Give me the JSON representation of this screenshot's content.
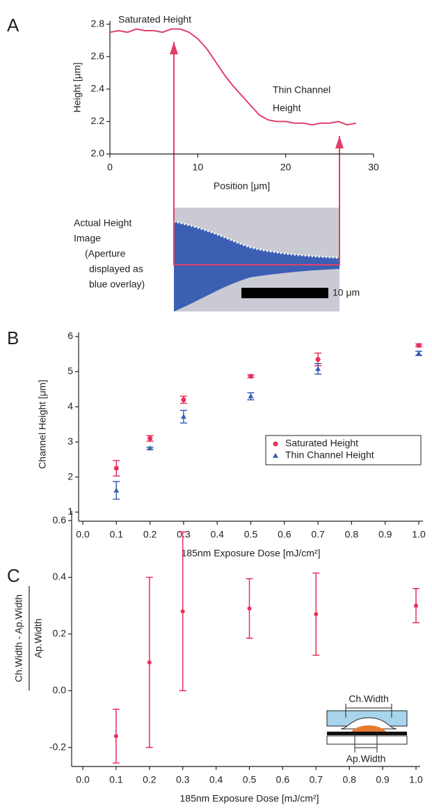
{
  "panel_labels": [
    "A",
    "B",
    "C"
  ],
  "chart_data": [
    {
      "type": "line",
      "xlabel": "Position [μm]",
      "ylabel": "Height [μm]",
      "color": "#e0406a",
      "x": [
        0,
        1,
        2,
        3,
        4,
        5,
        6,
        7,
        8,
        9,
        10,
        11,
        12,
        13,
        14,
        15,
        16,
        17,
        18,
        19,
        20,
        21,
        22,
        23,
        24,
        25,
        26,
        27,
        28
      ],
      "values": [
        2.75,
        2.76,
        2.75,
        2.77,
        2.76,
        2.76,
        2.75,
        2.77,
        2.77,
        2.75,
        2.71,
        2.65,
        2.57,
        2.49,
        2.42,
        2.36,
        2.3,
        2.24,
        2.21,
        2.2,
        2.2,
        2.19,
        2.19,
        2.18,
        2.19,
        2.19,
        2.2,
        2.18,
        2.19
      ],
      "xlim": [
        0,
        30
      ],
      "xticks": [
        0,
        10,
        20,
        30
      ],
      "ylim": [
        2.0,
        2.82
      ],
      "yticks": [
        {
          "value": 2.0,
          "label": "2.0"
        },
        2.2,
        2.4,
        2.6,
        2.8
      ],
      "annotations": [
        [
          "Saturated Height"
        ],
        [
          "Thin Channel",
          "Height"
        ]
      ],
      "image_caption": [
        "Actual Height",
        "Image",
        "(Aperture",
        "displayed as",
        "blue overlay)"
      ],
      "scale_bar_label": "10 μm"
    },
    {
      "type": "scatter",
      "xlabel": "185nm Exposure Dose [mJ/cm²]",
      "ylabel": "Channel Height [μm]",
      "x": [
        0.1,
        0.2,
        0.3,
        0.5,
        0.7,
        1.0
      ],
      "series": [
        {
          "name": "Saturated Height",
          "color": "#e8305a",
          "marker": "circle",
          "values": [
            2.25,
            3.1,
            4.2,
            4.87,
            5.35,
            5.75
          ],
          "errors": [
            0.22,
            0.08,
            0.1,
            0.04,
            0.18,
            0.04
          ]
        },
        {
          "name": "Thin Channel Height",
          "color": "#3a5fb0",
          "marker": "triangle",
          "values": [
            1.62,
            2.82,
            3.72,
            4.3,
            5.08,
            5.52
          ],
          "errors": [
            0.25,
            0.03,
            0.18,
            0.1,
            0.15,
            0.06
          ]
        }
      ],
      "xlim": [
        0,
        1
      ],
      "xticks": [
        {
          "value": 0,
          "label": "0.0"
        },
        0.1,
        0.2,
        0.3,
        0.4,
        0.5,
        0.6,
        0.7,
        0.8,
        0.9,
        {
          "value": 1,
          "label": "1.0"
        }
      ],
      "ylim": [
        1,
        6
      ],
      "yticks": [
        1,
        2,
        3,
        4,
        5,
        6
      ],
      "legend": "right"
    },
    {
      "type": "scatter",
      "xlabel": "185nm Exposure Dose [mJ/cm²]",
      "ylabel": [
        "Ch.Width - Ap.Width",
        "Ap.Width"
      ],
      "x": [
        0.1,
        0.2,
        0.3,
        0.5,
        0.7,
        1.0
      ],
      "series": [
        {
          "color": "#e8305a",
          "marker": "circle",
          "values": [
            -0.16,
            0.1,
            0.28,
            0.29,
            0.27,
            0.3
          ],
          "errors": [
            0.095,
            0.3,
            0.28,
            0.105,
            0.145,
            0.06
          ]
        }
      ],
      "xlim": [
        0,
        1
      ],
      "xticks": [
        {
          "value": 0,
          "label": "0.0"
        },
        0.1,
        0.2,
        0.3,
        0.4,
        0.5,
        0.6,
        0.7,
        0.8,
        0.9,
        {
          "value": 1,
          "label": "1.0"
        }
      ],
      "ylim": [
        -0.25,
        0.62
      ],
      "yticks": [
        -0.2,
        {
          "value": 0,
          "label": "0.0"
        },
        0.2,
        0.4,
        0.6
      ],
      "inset_labels": [
        "Ch.Width",
        "Ap.Width"
      ]
    }
  ]
}
